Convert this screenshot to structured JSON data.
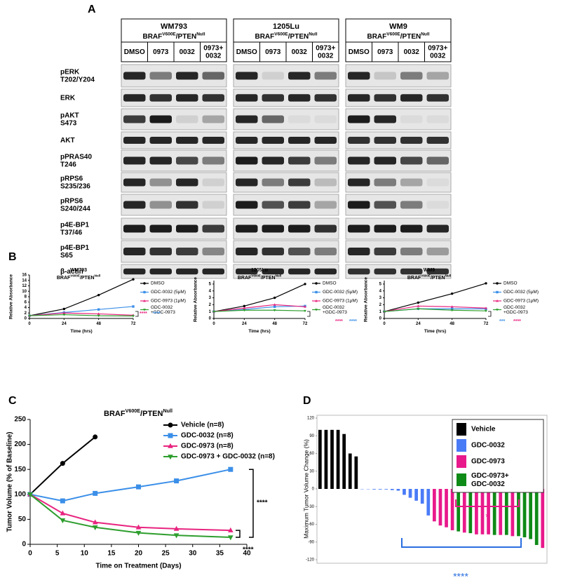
{
  "panel_labels": [
    "A",
    "B",
    "C",
    "D"
  ],
  "genotype": {
    "gene1": "BRAF",
    "allele1": "V600E",
    "gene2": "/PTEN",
    "allele2": "Null"
  },
  "blot": {
    "cell_lines": [
      "WM793",
      "1205Lu",
      "WM9"
    ],
    "lanes": [
      [
        "DMSO"
      ],
      [
        "0973"
      ],
      [
        "0032"
      ],
      [
        "0973+",
        "0032"
      ]
    ],
    "proteins": [
      [
        "pERK",
        "T202/Y204"
      ],
      [
        "ERK"
      ],
      [
        "pAKT",
        "S473"
      ],
      [
        "AKT"
      ],
      [
        "pPRAS40",
        "T246"
      ],
      [
        "pRPS6",
        "S235/236"
      ],
      [
        "pRPS6",
        "S240/244"
      ],
      [
        "p4E-BP1",
        "T37/46"
      ],
      [
        "p4E-BP1",
        "S65"
      ],
      [
        "β-actin"
      ]
    ],
    "band_intensity": [
      [
        [
          0.9,
          0.5,
          0.9,
          0.6
        ],
        [
          0.9,
          0.85,
          0.9,
          0.85
        ],
        [
          0.8,
          0.95,
          0.1,
          0.3
        ],
        [
          0.9,
          0.9,
          0.9,
          0.9
        ],
        [
          0.9,
          0.9,
          0.75,
          0.5
        ],
        [
          0.9,
          0.4,
          0.9,
          0.1
        ],
        [
          0.9,
          0.4,
          0.85,
          0.1
        ],
        [
          0.95,
          0.95,
          0.95,
          0.8
        ],
        [
          0.9,
          0.85,
          0.8,
          0.45
        ],
        [
          0.9,
          0.9,
          0.9,
          0.9
        ]
      ],
      [
        [
          0.9,
          0.1,
          0.9,
          0.5
        ],
        [
          0.9,
          0.85,
          0.9,
          0.85
        ],
        [
          0.9,
          0.6,
          0.05,
          0.05
        ],
        [
          0.9,
          0.9,
          0.9,
          0.9
        ],
        [
          0.95,
          0.9,
          0.8,
          0.5
        ],
        [
          0.9,
          0.5,
          0.8,
          0.2
        ],
        [
          0.95,
          0.7,
          0.8,
          0.3
        ],
        [
          0.95,
          0.95,
          0.95,
          0.85
        ],
        [
          0.9,
          0.85,
          0.7,
          0.5
        ],
        [
          0.9,
          0.9,
          0.9,
          0.9
        ]
      ],
      [
        [
          0.9,
          0.15,
          0.5,
          0.3
        ],
        [
          0.9,
          0.85,
          0.9,
          0.85
        ],
        [
          0.95,
          0.9,
          0.05,
          0.05
        ],
        [
          0.85,
          0.85,
          0.85,
          0.85
        ],
        [
          0.9,
          0.9,
          0.75,
          0.6
        ],
        [
          0.9,
          0.5,
          0.3,
          0.05
        ],
        [
          0.95,
          0.7,
          0.5,
          0.05
        ],
        [
          0.95,
          0.95,
          0.95,
          0.9
        ],
        [
          0.9,
          0.8,
          0.5,
          0.35
        ],
        [
          0.85,
          0.85,
          0.85,
          0.85
        ]
      ]
    ]
  },
  "chart_data": [
    {
      "type": "line",
      "title": "WM793",
      "xlabel": "Time (hrs)",
      "ylabel": "Relative Absorbance",
      "x": [
        0,
        24,
        48,
        72
      ],
      "xlim": [
        0,
        72
      ],
      "xticks": [
        0,
        24,
        48,
        72
      ],
      "ylim": [
        0,
        16
      ],
      "yticks": [
        0,
        2,
        4,
        6,
        8,
        10,
        12,
        14,
        16
      ],
      "series": [
        {
          "name": "DMSO",
          "color": "#000000",
          "marker": "circle",
          "values": [
            1,
            3.5,
            8.6,
            14.4
          ]
        },
        {
          "name": "GDC-0032 (5μM)",
          "color": "#3b8fe8",
          "marker": "square",
          "values": [
            1,
            2.2,
            3.3,
            4.4
          ]
        },
        {
          "name": "GDC-0973 (1μM)",
          "color": "#e8247f",
          "marker": "triangle",
          "values": [
            1,
            2,
            1.7,
            1.2
          ]
        },
        {
          "name": "GDC-0032 +GDC-0973",
          "color": "#2e9e2e",
          "marker": "triangle-down",
          "values": [
            1,
            1.4,
            1,
            0.9
          ]
        }
      ],
      "annotations": [
        {
          "text": "****",
          "color": "#e8247f"
        },
        {
          "text": "****",
          "color": "#3b8fe8"
        }
      ]
    },
    {
      "type": "line",
      "title": "1205Lu",
      "xlabel": "Time (hrs)",
      "ylabel": "Relative Absorbance",
      "x": [
        0,
        24,
        48,
        72
      ],
      "xlim": [
        0,
        72
      ],
      "xticks": [
        0,
        24,
        48,
        72
      ],
      "ylim": [
        0,
        5.5
      ],
      "yticks": [
        0,
        1,
        2,
        3,
        4,
        5
      ],
      "series": [
        {
          "name": "DMSO",
          "color": "#000000",
          "marker": "circle",
          "values": [
            1,
            1.8,
            3,
            5
          ]
        },
        {
          "name": "GDC-0032 (5μM)",
          "color": "#3b8fe8",
          "marker": "square",
          "values": [
            1,
            1.3,
            1.7,
            1.8
          ]
        },
        {
          "name": "GDC-0973 (1μM)",
          "color": "#e8247f",
          "marker": "triangle",
          "values": [
            1,
            1.5,
            2,
            1.7
          ]
        },
        {
          "name": "GDC-0032 +GDC-0973",
          "color": "#2e9e2e",
          "marker": "triangle-down",
          "values": [
            1,
            1.2,
            1.2,
            1.1
          ]
        }
      ],
      "annotations": [
        {
          "text": "****",
          "color": "#e8247f"
        },
        {
          "text": "****",
          "color": "#3b8fe8"
        }
      ]
    },
    {
      "type": "line",
      "title": "WM9",
      "xlabel": "Time (hrs)",
      "ylabel": "Relative Absorbance",
      "x": [
        0,
        24,
        48,
        72
      ],
      "xlim": [
        0,
        72
      ],
      "xticks": [
        0,
        24,
        48,
        72
      ],
      "ylim": [
        0,
        5.5
      ],
      "yticks": [
        0,
        1,
        2,
        3,
        4,
        5
      ],
      "series": [
        {
          "name": "DMSO",
          "color": "#000000",
          "marker": "circle",
          "values": [
            1,
            2.3,
            3.6,
            5.1
          ]
        },
        {
          "name": "GDC-0032 (5μM)",
          "color": "#3b8fe8",
          "marker": "square",
          "values": [
            1,
            1.4,
            1.4,
            1.4
          ]
        },
        {
          "name": "GDC-0973 (1μM)",
          "color": "#e8247f",
          "marker": "triangle",
          "values": [
            1,
            1.8,
            1.7,
            1.5
          ]
        },
        {
          "name": "GDC-0032 +GDC-0973",
          "color": "#2e9e2e",
          "marker": "triangle-down",
          "values": [
            1,
            1.4,
            1.2,
            1.1
          ]
        }
      ],
      "annotations": [
        {
          "text": "***",
          "color": "#3b8fe8"
        },
        {
          "text": "****",
          "color": "#e8247f"
        }
      ]
    },
    {
      "type": "line",
      "xlabel": "Time on Treatment (Days)",
      "ylabel": "Tumor Volume (% of Baseline)",
      "xlim": [
        0,
        40
      ],
      "xticks": [
        0,
        5,
        10,
        15,
        20,
        25,
        30,
        35,
        40
      ],
      "ylim": [
        0,
        250
      ],
      "yticks": [
        0,
        50,
        100,
        150,
        200,
        250
      ],
      "series": [
        {
          "name": "Vehicle (n=8)",
          "color": "#000000",
          "marker": "circle",
          "x": [
            0,
            6,
            12
          ],
          "values": [
            100,
            162,
            215
          ]
        },
        {
          "name": "GDC-0032 (n=8)",
          "color": "#3b8fe8",
          "marker": "square",
          "x": [
            0,
            6,
            12,
            20,
            27,
            37
          ],
          "values": [
            100,
            87,
            102,
            115,
            127,
            150
          ]
        },
        {
          "name": "GDC-0973 (n=8)",
          "color": "#e8247f",
          "marker": "triangle",
          "x": [
            0,
            6,
            12,
            20,
            27,
            37
          ],
          "values": [
            100,
            62,
            44,
            34,
            31,
            28
          ]
        },
        {
          "name": "GDC-0973 + GDC-0032 (n=8)",
          "color": "#2e9e2e",
          "marker": "triangle-down",
          "x": [
            0,
            6,
            12,
            20,
            27,
            37
          ],
          "values": [
            100,
            48,
            34,
            23,
            18,
            14
          ]
        }
      ],
      "annotations": [
        {
          "text": "****",
          "color": "#000000"
        },
        {
          "text": "****",
          "color": "#000000"
        }
      ]
    },
    {
      "type": "bar",
      "ylabel": "Maximum Tumor Volume Change (%)",
      "ylim": [
        -120,
        120
      ],
      "yticks": [
        -120,
        -90,
        -60,
        -30,
        0,
        30,
        60,
        90,
        120
      ],
      "categories": [
        null,
        null,
        null,
        null,
        null,
        null,
        null,
        null,
        null,
        null,
        null,
        null,
        null,
        null,
        null,
        null,
        null,
        null,
        null,
        null,
        null,
        null,
        null,
        null,
        null,
        null,
        null,
        null,
        null,
        null,
        null,
        null,
        null,
        null,
        null,
        null,
        null,
        null
      ],
      "series": [
        {
          "name": "Vehicle",
          "color": "#000000",
          "values": [
            100,
            100,
            100,
            100,
            93,
            60,
            55,
            null,
            null,
            null,
            null,
            null,
            null,
            null,
            null,
            null,
            null,
            null,
            null,
            null,
            null,
            null,
            null,
            null,
            null,
            null,
            null,
            null,
            null,
            null,
            null,
            null,
            null,
            null,
            null,
            null,
            null,
            null
          ]
        },
        {
          "name": "GDC-0032",
          "color": "#4a7bf7",
          "values": [
            null,
            null,
            null,
            null,
            null,
            null,
            null,
            -0.5,
            -0.5,
            -1,
            -1,
            -1,
            -2,
            -3,
            -10,
            -15,
            -20,
            -25,
            -45,
            null,
            null,
            null,
            null,
            null,
            null,
            null,
            null,
            null,
            null,
            null,
            null,
            null,
            null,
            null,
            null,
            null,
            null,
            null
          ]
        },
        {
          "name": "GDC-0973",
          "color": "#e8198b",
          "values": [
            null,
            null,
            null,
            null,
            null,
            null,
            null,
            null,
            null,
            null,
            null,
            null,
            null,
            null,
            null,
            null,
            null,
            null,
            null,
            -55,
            -62,
            -65,
            -70,
            null,
            -74,
            null,
            -77,
            -77,
            -77,
            null,
            -78,
            null,
            -80,
            null,
            null,
            null,
            null,
            -100
          ]
        },
        {
          "name": "GDC-0973+ GDC-0032",
          "color": "#0e8a16",
          "values": [
            null,
            null,
            null,
            null,
            null,
            null,
            null,
            null,
            null,
            null,
            null,
            null,
            null,
            null,
            null,
            null,
            null,
            null,
            null,
            null,
            null,
            null,
            null,
            -72,
            null,
            -75,
            null,
            null,
            null,
            -78,
            null,
            -78,
            null,
            -80,
            -82,
            -85,
            -95,
            null
          ]
        }
      ],
      "annotations": [
        {
          "text": "*",
          "color": "#e8198b"
        },
        {
          "text": "****",
          "color": "#2a6ee0"
        }
      ]
    }
  ]
}
